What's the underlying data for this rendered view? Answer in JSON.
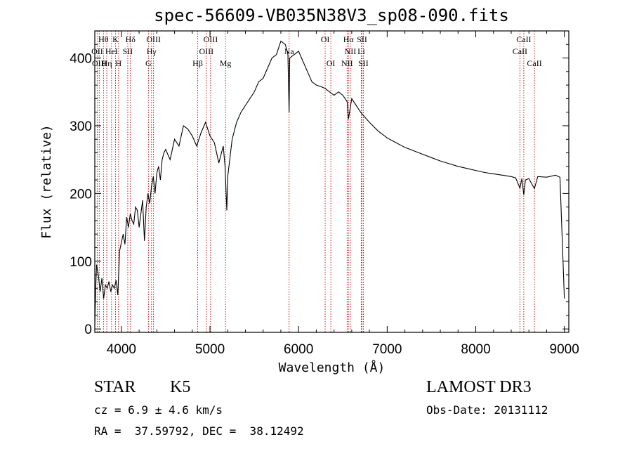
{
  "chart_data": {
    "type": "line",
    "title": "spec-56609-VB035N38V3_sp08-090.fits",
    "xlabel": "Wavelength (Å)",
    "ylabel": "Flux (relative)",
    "xlim": [
      3700,
      9050
    ],
    "ylim": [
      -5,
      440
    ],
    "xticks": [
      4000,
      5000,
      6000,
      7000,
      8000,
      9000
    ],
    "yticks": [
      0,
      100,
      200,
      300,
      400
    ],
    "series": [
      {
        "name": "flux",
        "x": [
          3700,
          3710,
          3720,
          3740,
          3760,
          3780,
          3800,
          3820,
          3840,
          3860,
          3880,
          3900,
          3920,
          3940,
          3960,
          3980,
          4000,
          4020,
          4040,
          4060,
          4080,
          4100,
          4120,
          4140,
          4160,
          4180,
          4200,
          4220,
          4240,
          4260,
          4280,
          4300,
          4320,
          4340,
          4360,
          4380,
          4400,
          4420,
          4440,
          4460,
          4480,
          4500,
          4550,
          4600,
          4650,
          4700,
          4750,
          4800,
          4850,
          4900,
          4950,
          5000,
          5050,
          5100,
          5150,
          5170,
          5190,
          5200,
          5250,
          5300,
          5350,
          5400,
          5450,
          5500,
          5550,
          5600,
          5650,
          5700,
          5750,
          5800,
          5850,
          5880,
          5893,
          5900,
          5950,
          6000,
          6050,
          6100,
          6150,
          6200,
          6250,
          6300,
          6350,
          6400,
          6450,
          6500,
          6550,
          6563,
          6600,
          6700,
          6800,
          6900,
          7000,
          7100,
          7200,
          7300,
          7400,
          7500,
          7600,
          7700,
          7800,
          7900,
          8000,
          8100,
          8200,
          8300,
          8400,
          8450,
          8498,
          8520,
          8542,
          8560,
          8600,
          8662,
          8700,
          8800,
          8900,
          8950,
          9000
        ],
        "y": [
          5,
          60,
          95,
          80,
          55,
          75,
          45,
          65,
          60,
          70,
          55,
          65,
          60,
          72,
          50,
          115,
          128,
          140,
          125,
          165,
          150,
          170,
          160,
          155,
          180,
          175,
          150,
          170,
          190,
          130,
          180,
          200,
          185,
          210,
          225,
          200,
          230,
          240,
          220,
          250,
          260,
          265,
          250,
          280,
          270,
          300,
          295,
          285,
          270,
          290,
          305,
          285,
          275,
          245,
          270,
          240,
          175,
          225,
          280,
          305,
          320,
          330,
          340,
          350,
          365,
          370,
          385,
          400,
          405,
          425,
          420,
          405,
          320,
          400,
          405,
          410,
          395,
          380,
          365,
          360,
          358,
          355,
          350,
          345,
          350,
          345,
          335,
          310,
          340,
          320,
          305,
          292,
          282,
          275,
          268,
          263,
          258,
          253,
          248,
          244,
          240,
          237,
          234,
          231,
          229,
          227,
          225,
          223,
          208,
          222,
          198,
          220,
          222,
          207,
          225,
          224,
          227,
          224,
          45
        ]
      }
    ],
    "line_markers": [
      {
        "label": "Hθ",
        "x": 3798,
        "row": 0
      },
      {
        "label": "K",
        "x": 3934,
        "row": 0
      },
      {
        "label": "Hδ",
        "x": 4102,
        "row": 0
      },
      {
        "label": "OIII",
        "x": 4363,
        "row": 0
      },
      {
        "label": "OIII",
        "x": 5007,
        "row": 0
      },
      {
        "label": "OI",
        "x": 6300,
        "row": 0
      },
      {
        "label": "Hα",
        "x": 6563,
        "row": 0
      },
      {
        "label": "SII",
        "x": 6716,
        "row": 0
      },
      {
        "label": "CaII",
        "x": 8542,
        "row": 0
      },
      {
        "label": "OII",
        "x": 3727,
        "row": 1
      },
      {
        "label": "HeI",
        "x": 3889,
        "row": 1
      },
      {
        "label": "SII",
        "x": 4072,
        "row": 1
      },
      {
        "label": "Hγ",
        "x": 4340,
        "row": 1
      },
      {
        "label": "OIII",
        "x": 4959,
        "row": 1
      },
      {
        "label": "Na",
        "x": 5893,
        "row": 1
      },
      {
        "label": "NII",
        "x": 6584,
        "row": 1
      },
      {
        "label": "Li",
        "x": 6708,
        "row": 1
      },
      {
        "label": "CaII",
        "x": 8498,
        "row": 1
      },
      {
        "label": "OIII",
        "x": 3750,
        "row": 2
      },
      {
        "label": "Hη",
        "x": 3835,
        "row": 2
      },
      {
        "label": "H",
        "x": 3968,
        "row": 2
      },
      {
        "label": "G",
        "x": 4305,
        "row": 2
      },
      {
        "label": "Hβ",
        "x": 4861,
        "row": 2
      },
      {
        "label": "Mg",
        "x": 5175,
        "row": 2
      },
      {
        "label": "OI",
        "x": 6364,
        "row": 2
      },
      {
        "label": "NII",
        "x": 6548,
        "row": 2
      },
      {
        "label": "SII",
        "x": 6731,
        "row": 2
      },
      {
        "label": "CaII",
        "x": 8662,
        "row": 2
      }
    ],
    "colors": {
      "spectrum": "#000000",
      "markers": "#c00000",
      "axes": "#000000"
    }
  },
  "info": {
    "object_class": "STAR",
    "subclass": "K5",
    "survey": "LAMOST DR3",
    "redshift": "cz = 6.9 ± 4.6 km/s",
    "obs_date": "Obs-Date: 20131112",
    "coords": "RA =  37.59792, DEC =  38.12492"
  }
}
